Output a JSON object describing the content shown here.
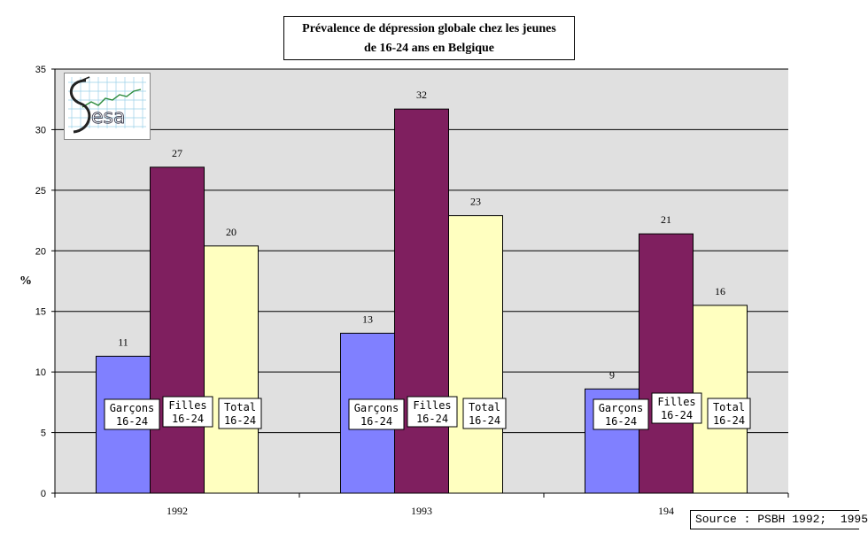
{
  "chart_data": {
    "type": "bar",
    "title_lines": [
      "Prévalence de dépression globale chez les jeunes",
      "de 16-24 ans en Belgique"
    ],
    "ylabel": "%",
    "ylim": [
      0,
      35
    ],
    "yticks": [
      0,
      5,
      10,
      15,
      20,
      25,
      30,
      35
    ],
    "grid": true,
    "categories": [
      "1992",
      "1993",
      "194"
    ],
    "series": [
      {
        "name": "Garçons 16-24",
        "label_lines": [
          "Garçons",
          "16-24"
        ],
        "color": "#8080ff",
        "values": [
          11.3,
          13.2,
          8.6
        ],
        "data_labels": [
          "11",
          "13",
          "9"
        ]
      },
      {
        "name": "Filles 16-24",
        "label_lines": [
          "Filles",
          "16-24"
        ],
        "color": "#7f1f5f",
        "values": [
          26.9,
          31.7,
          21.4
        ],
        "data_labels": [
          "27",
          "32",
          "21"
        ]
      },
      {
        "name": "Total 16-24",
        "label_lines": [
          "Total",
          "16-24"
        ],
        "color": "#ffffc0",
        "values": [
          20.4,
          22.9,
          15.5
        ],
        "data_labels": [
          "20",
          "23",
          "16"
        ]
      }
    ],
    "plot_background": "#e0e0e0"
  },
  "source_text": "Source : PSBH 1992;  1995",
  "logo": {
    "icon": "sesa-logo",
    "text": "Sesa"
  }
}
